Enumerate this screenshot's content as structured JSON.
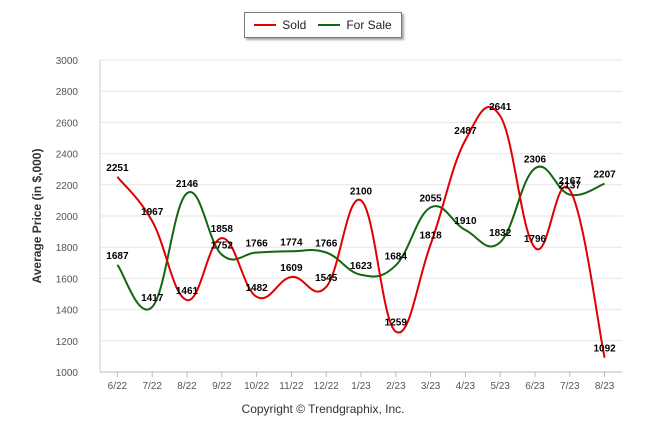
{
  "chart_data": {
    "type": "line",
    "categories": [
      "6/22",
      "7/22",
      "8/22",
      "9/22",
      "10/22",
      "11/22",
      "12/22",
      "1/23",
      "2/23",
      "3/23",
      "4/23",
      "5/23",
      "6/23",
      "7/23",
      "8/23"
    ],
    "series": [
      {
        "name": "Sold",
        "color": "#e00000",
        "values": [
          2251,
          1967,
          1461,
          1858,
          1482,
          1609,
          1545,
          2100,
          1259,
          1818,
          2487,
          2641,
          1796,
          2167,
          1092
        ]
      },
      {
        "name": "For Sale",
        "color": "#116611",
        "values": [
          1687,
          1417,
          2146,
          1752,
          1766,
          1774,
          1766,
          1623,
          1684,
          2055,
          1910,
          1832,
          2306,
          2137,
          2207
        ]
      }
    ],
    "ylabel": "Average Price (in $,000)",
    "xlabel": "",
    "ylim": [
      1000,
      3000
    ],
    "yticks": [
      "1000",
      "1200",
      "1400",
      "1600",
      "1800",
      "2000",
      "2200",
      "2400",
      "2600",
      "2800",
      "3000"
    ],
    "grid": true,
    "legend_position": "top-center",
    "curve": "smooth"
  },
  "footer": {
    "copyright": "Copyright © Trendgraphix, Inc."
  }
}
